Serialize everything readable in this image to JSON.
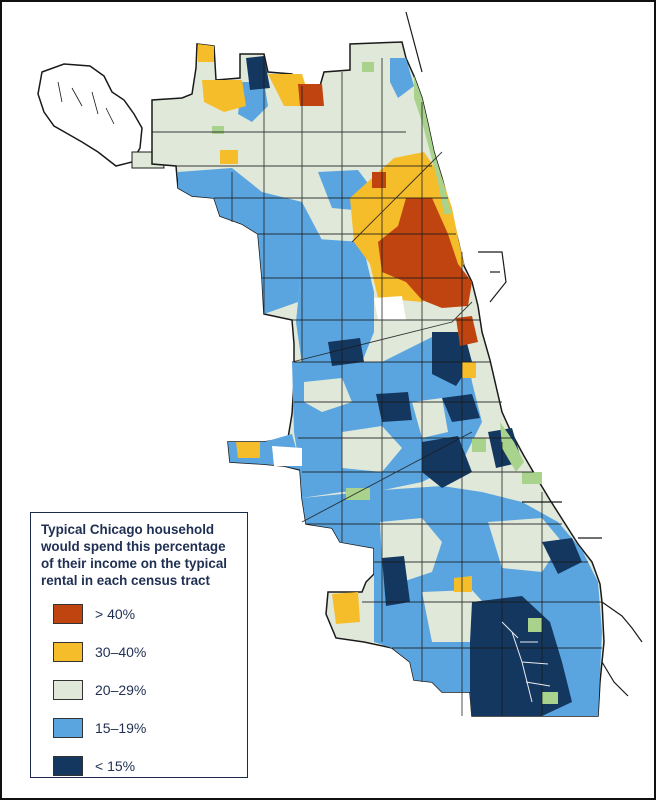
{
  "legend": {
    "title": "Typical Chicago household would spend this percentage of their income on the typical rental in each census tract",
    "items": [
      {
        "label": "> 40%",
        "color": "#c0440f"
      },
      {
        "label": "30–40%",
        "color": "#f6bd2b"
      },
      {
        "label": "20–29%",
        "color": "#e0e8da"
      },
      {
        "label": "15–19%",
        "color": "#5aa5e0"
      },
      {
        "label": "< 15%",
        "color": "#14375f"
      }
    ]
  },
  "map": {
    "parks_color": "#a9d38c",
    "outline_color": "#1a1a1a",
    "lake_shore_color": "#1a1a1a"
  }
}
